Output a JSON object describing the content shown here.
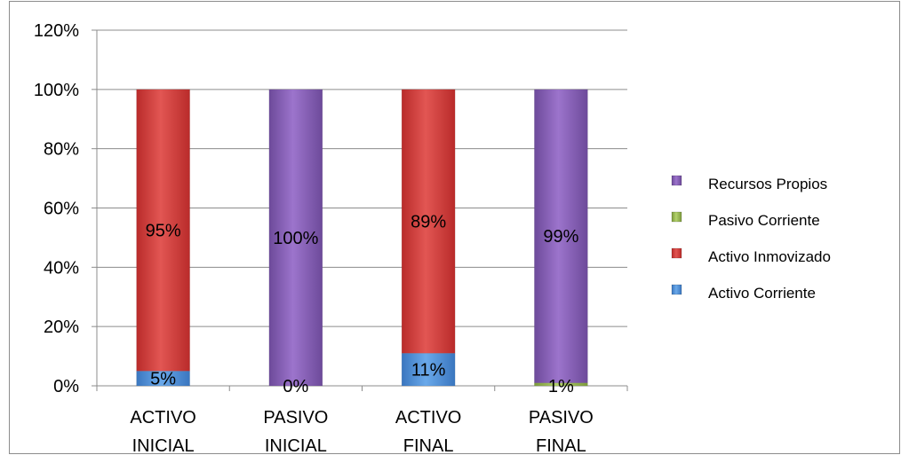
{
  "chart_data": {
    "type": "bar",
    "stacked": true,
    "percent_stacked": true,
    "categories": [
      [
        "ACTIVO",
        "INICIAL"
      ],
      [
        "PASIVO",
        "INICIAL"
      ],
      [
        "ACTIVO",
        "FINAL"
      ],
      [
        "PASIVO",
        "FINAL"
      ]
    ],
    "series": [
      {
        "name": "Activo Corriente",
        "values": [
          5,
          null,
          11,
          null
        ],
        "color": "#4f8fd6",
        "labels": [
          "5%",
          null,
          "11%",
          null
        ]
      },
      {
        "name": "Activo Inmovizado",
        "values": [
          95,
          null,
          89,
          null
        ],
        "color": "#d7403e",
        "labels": [
          "95%",
          null,
          "89%",
          null
        ]
      },
      {
        "name": "Pasivo Corriente",
        "values": [
          null,
          0,
          null,
          1
        ],
        "color": "#9bbb59",
        "labels": [
          null,
          "0%",
          null,
          "1%"
        ]
      },
      {
        "name": "Recursos Propios",
        "values": [
          null,
          100,
          null,
          99
        ],
        "color": "#8b62b8",
        "labels": [
          null,
          "100%",
          null,
          "99%"
        ]
      }
    ],
    "legend_order": [
      "Recursos Propios",
      "Pasivo Corriente",
      "Activo Inmovizado",
      "Activo Corriente"
    ],
    "ylim": [
      0,
      120
    ],
    "yticks": [
      0,
      20,
      40,
      60,
      80,
      100,
      120
    ],
    "ytick_labels": [
      "0%",
      "20%",
      "40%",
      "60%",
      "80%",
      "100%",
      "120%"
    ],
    "grid": true,
    "legend_position": "right",
    "title": "",
    "xlabel": "",
    "ylabel": ""
  }
}
